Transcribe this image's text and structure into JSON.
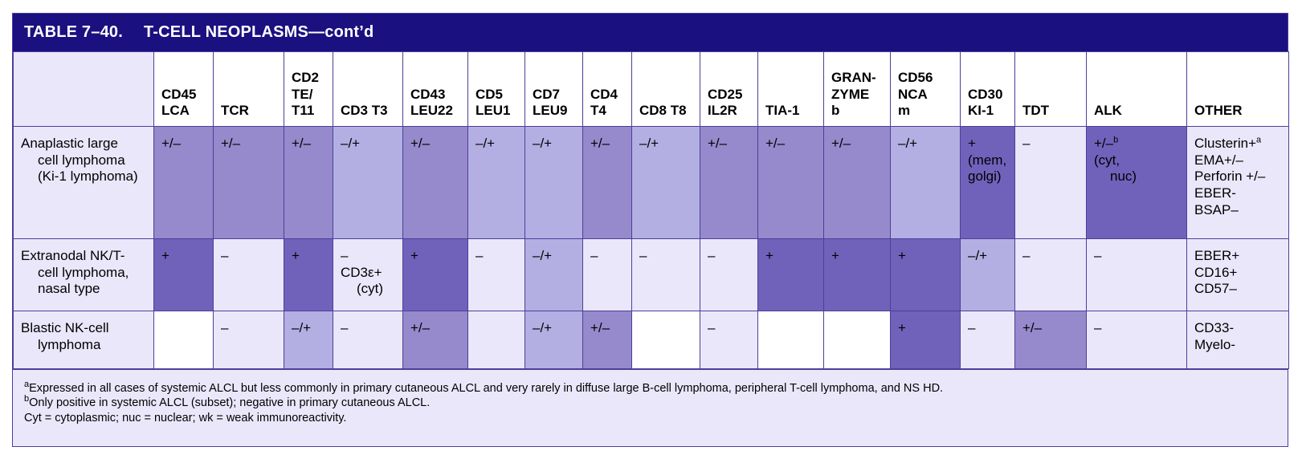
{
  "title": {
    "number": "TABLE 7–40.",
    "text": "T-CELL NEOPLASMS—cont’d"
  },
  "headers": [
    {
      "lines": [
        "CD45",
        "LCA"
      ]
    },
    {
      "lines": [
        "TCR"
      ]
    },
    {
      "lines": [
        "CD2",
        "TE/",
        "T11"
      ]
    },
    {
      "lines": [
        "CD3 T3"
      ]
    },
    {
      "lines": [
        "CD43",
        "LEU22"
      ]
    },
    {
      "lines": [
        "CD5",
        "LEU1"
      ]
    },
    {
      "lines": [
        "CD7",
        "LEU9"
      ]
    },
    {
      "lines": [
        "CD4",
        "T4"
      ]
    },
    {
      "lines": [
        "CD8 T8"
      ]
    },
    {
      "lines": [
        "CD25",
        "IL2R"
      ]
    },
    {
      "lines": [
        "TIA-1"
      ]
    },
    {
      "lines": [
        "GRAN-",
        "ZYME",
        "b"
      ]
    },
    {
      "lines": [
        "CD56",
        "NCA",
        "m"
      ]
    },
    {
      "lines": [
        "CD30",
        "KI-1"
      ]
    },
    {
      "lines": [
        "TDT"
      ]
    },
    {
      "lines": [
        "ALK"
      ]
    },
    {
      "lines": [
        "OTHER"
      ]
    }
  ],
  "rows": [
    {
      "label_first": "Anaplastic large",
      "label_cont": [
        "cell lymphoma",
        "(Ki-1 lymphoma)"
      ],
      "cells": [
        {
          "text": "+/–",
          "shade": "mid"
        },
        {
          "text": "+/–",
          "shade": "mid"
        },
        {
          "text": "+/–",
          "shade": "mid"
        },
        {
          "text": "–/+",
          "shade": "pale"
        },
        {
          "text": "+/–",
          "shade": "mid"
        },
        {
          "text": "–/+",
          "shade": "pale"
        },
        {
          "text": "–/+",
          "shade": "pale"
        },
        {
          "text": "+/–",
          "shade": "mid"
        },
        {
          "text": "–/+",
          "shade": "pale"
        },
        {
          "text": "+/–",
          "shade": "mid"
        },
        {
          "text": "+/–",
          "shade": "mid"
        },
        {
          "text": "+/–",
          "shade": "mid"
        },
        {
          "text": "–/+",
          "shade": "pale"
        },
        {
          "text": "+(mem,\ngolgi)",
          "shade": "dark"
        },
        {
          "text": "–",
          "shade": "light"
        },
        {
          "text": "+/–",
          "sup": "b",
          "extra": [
            "(cyt,",
            "nuc)"
          ],
          "shade": "dark"
        },
        {
          "other": [
            {
              "text": "Clusterin+",
              "sup": "a"
            },
            {
              "text": "EMA+/–"
            },
            {
              "text": "Perforin +/–"
            },
            {
              "text": "EBER-"
            },
            {
              "text": "BSAP–"
            }
          ],
          "shade": "light"
        }
      ]
    },
    {
      "label_first": "Extranodal NK/T-",
      "label_cont": [
        "cell lymphoma,",
        "nasal type"
      ],
      "cells": [
        {
          "text": "+",
          "shade": "dark"
        },
        {
          "text": "–",
          "shade": "light"
        },
        {
          "text": "+",
          "shade": "dark"
        },
        {
          "text": "–",
          "extra_lines": [
            "CD3ε+",
            "(cyt)"
          ],
          "shade": "light"
        },
        {
          "text": "+",
          "shade": "dark"
        },
        {
          "text": "–",
          "shade": "light"
        },
        {
          "text": "–/+",
          "shade": "pale"
        },
        {
          "text": "–",
          "shade": "light"
        },
        {
          "text": "–",
          "shade": "light"
        },
        {
          "text": "–",
          "shade": "light"
        },
        {
          "text": "+",
          "shade": "dark"
        },
        {
          "text": "+",
          "shade": "dark"
        },
        {
          "text": "+",
          "shade": "dark"
        },
        {
          "text": "–/+",
          "shade": "pale"
        },
        {
          "text": "–",
          "shade": "light"
        },
        {
          "text": "–",
          "shade": "light"
        },
        {
          "other": [
            {
              "text": "EBER+"
            },
            {
              "text": "CD16+"
            },
            {
              "text": "CD57–"
            }
          ],
          "shade": "light"
        }
      ]
    },
    {
      "label_first": "Blastic NK-cell",
      "label_cont": [
        "lymphoma"
      ],
      "cells": [
        {
          "text": "",
          "shade": "white"
        },
        {
          "text": "–",
          "shade": "light"
        },
        {
          "text": "–/+",
          "shade": "pale"
        },
        {
          "text": "–",
          "shade": "light"
        },
        {
          "text": "+/–",
          "shade": "mid"
        },
        {
          "text": "",
          "shade": "light"
        },
        {
          "text": "–/+",
          "shade": "pale"
        },
        {
          "text": "+/–",
          "shade": "mid"
        },
        {
          "text": "",
          "shade": "white"
        },
        {
          "text": "–",
          "shade": "light"
        },
        {
          "text": "",
          "shade": "white"
        },
        {
          "text": "",
          "shade": "white"
        },
        {
          "text": "+",
          "shade": "dark"
        },
        {
          "text": "–",
          "shade": "light"
        },
        {
          "text": "+/–",
          "shade": "mid"
        },
        {
          "text": "–",
          "shade": "light"
        },
        {
          "other": [
            {
              "text": "CD33-"
            },
            {
              "text": "Myelo-"
            }
          ],
          "shade": "light"
        }
      ]
    }
  ],
  "footnotes": [
    {
      "sup": "a",
      "text": "Expressed in all cases of systemic ALCL but less commonly in primary cutaneous ALCL and very rarely in diffuse large B-cell lymphoma, peripheral T-cell lymphoma, and NS HD."
    },
    {
      "sup": "b",
      "text": "Only positive in systemic ALCL (subset); negative in primary cutaneous ALCL."
    },
    {
      "sup": "",
      "text": "Cyt = cytoplasmic; nuc = nuclear; wk = weak immunoreactivity."
    }
  ],
  "colors": {
    "title_bg": "#1b1080",
    "light": "#ebe7fb",
    "pale": "#b3afe2",
    "mid": "#968acc",
    "dark": "#7062bb",
    "border": "#4b3f9a"
  }
}
